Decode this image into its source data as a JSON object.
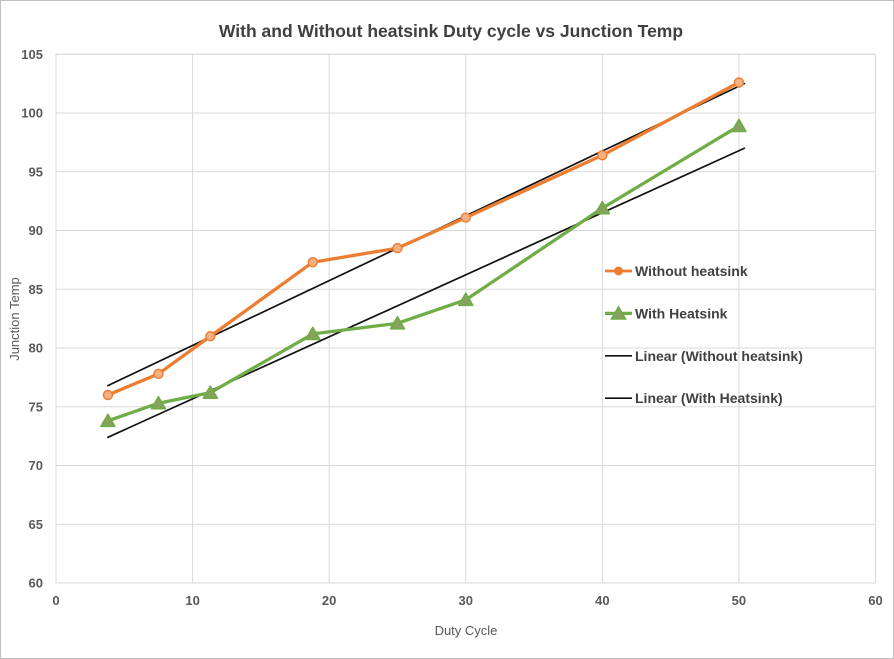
{
  "chart_data": {
    "type": "line",
    "title": "With and Without heatsink Duty cycle vs Junction Temp",
    "xlabel": "Duty Cycle",
    "ylabel": "Junction Temp",
    "xlim": [
      0,
      60
    ],
    "ylim": [
      60,
      105
    ],
    "x_ticks": [
      0,
      10,
      20,
      30,
      40,
      50,
      60
    ],
    "y_ticks": [
      60,
      65,
      70,
      75,
      80,
      85,
      90,
      95,
      100,
      105
    ],
    "grid": true,
    "x": [
      3.8,
      7.5,
      11.3,
      18.8,
      25,
      30,
      40,
      50
    ],
    "series": [
      {
        "name": "Without heatsink",
        "marker": "circle",
        "color": "#ED7D31",
        "marker_fill": "#F4B183",
        "values": [
          76.0,
          77.8,
          81.0,
          87.3,
          88.5,
          91.1,
          96.4,
          102.6
        ]
      },
      {
        "name": "With Heatsink",
        "marker": "triangle",
        "color": "#70AD47",
        "marker_fill": "#87A25F",
        "values": [
          73.8,
          75.3,
          76.2,
          81.2,
          82.1,
          84.1,
          91.9,
          98.9
        ]
      }
    ],
    "trendlines": [
      {
        "name": "Linear (Without heatsink)",
        "color": "#111111",
        "x1": 3.8,
        "y1": 76.8,
        "x2": 50.4,
        "y2": 102.5
      },
      {
        "name": "Linear (With Heatsink)",
        "color": "#111111",
        "x1": 3.8,
        "y1": 72.4,
        "x2": 50.4,
        "y2": 97.0
      }
    ],
    "legend": {
      "position": "right-middle",
      "items": [
        {
          "label": "Without heatsink",
          "swatch": "orange-line-circle"
        },
        {
          "label": "With Heatsink",
          "swatch": "green-line-triangle"
        },
        {
          "label": "Linear (Without heatsink)",
          "swatch": "black-line"
        },
        {
          "label": "Linear (With Heatsink)",
          "swatch": "black-line"
        }
      ]
    },
    "colors": {
      "gridline": "#D9D9D9",
      "axis_line": "#BFBFBF",
      "title_text": "#404040",
      "tick_text": "#595959"
    }
  }
}
